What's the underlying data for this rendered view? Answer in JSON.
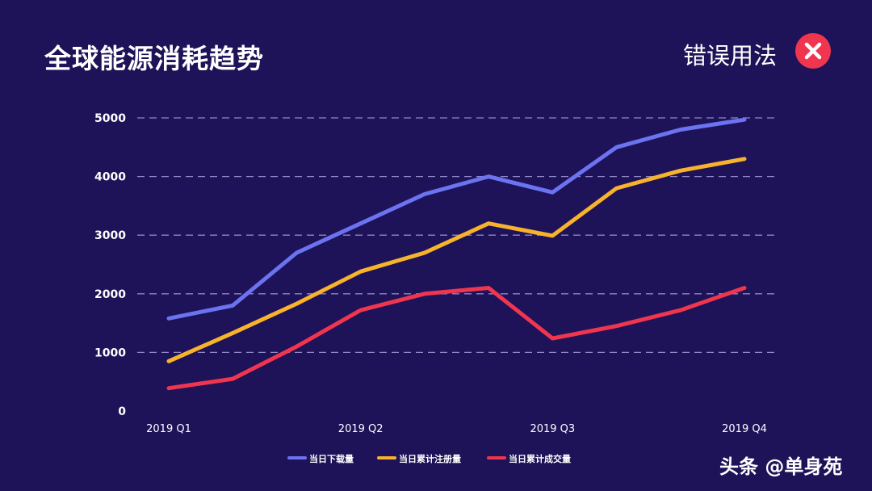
{
  "header": {
    "title": "全球能源消耗趋势",
    "badge_label": "错误用法",
    "badge_icon": "close-icon",
    "badge_color": "#f0354f"
  },
  "watermark": "头条 @单身苑",
  "chart_data": {
    "type": "line",
    "title": "全球能源消耗趋势",
    "xlabel": "",
    "ylabel": "",
    "ylim": [
      0,
      5000
    ],
    "yticks": [
      0,
      1000,
      2000,
      3000,
      4000,
      5000
    ],
    "x_tick_labels": [
      "2019 Q1",
      "2019 Q2",
      "2019 Q3",
      "2019 Q4"
    ],
    "points_per_series": 10,
    "grid": true,
    "legend_position": "bottom",
    "series": [
      {
        "name": "当日下载量",
        "color": "#6b73f0",
        "values": [
          1580,
          1800,
          2700,
          3200,
          3700,
          4000,
          3730,
          4500,
          4800,
          4970
        ]
      },
      {
        "name": "当日累计注册量",
        "color": "#f7b32b",
        "values": [
          850,
          1330,
          1830,
          2380,
          2700,
          3200,
          2990,
          3800,
          4100,
          4300
        ]
      },
      {
        "name": "当日累计成交量",
        "color": "#f0354f",
        "values": [
          390,
          550,
          1100,
          1720,
          2000,
          2100,
          1240,
          1450,
          1720,
          2100
        ]
      }
    ]
  }
}
